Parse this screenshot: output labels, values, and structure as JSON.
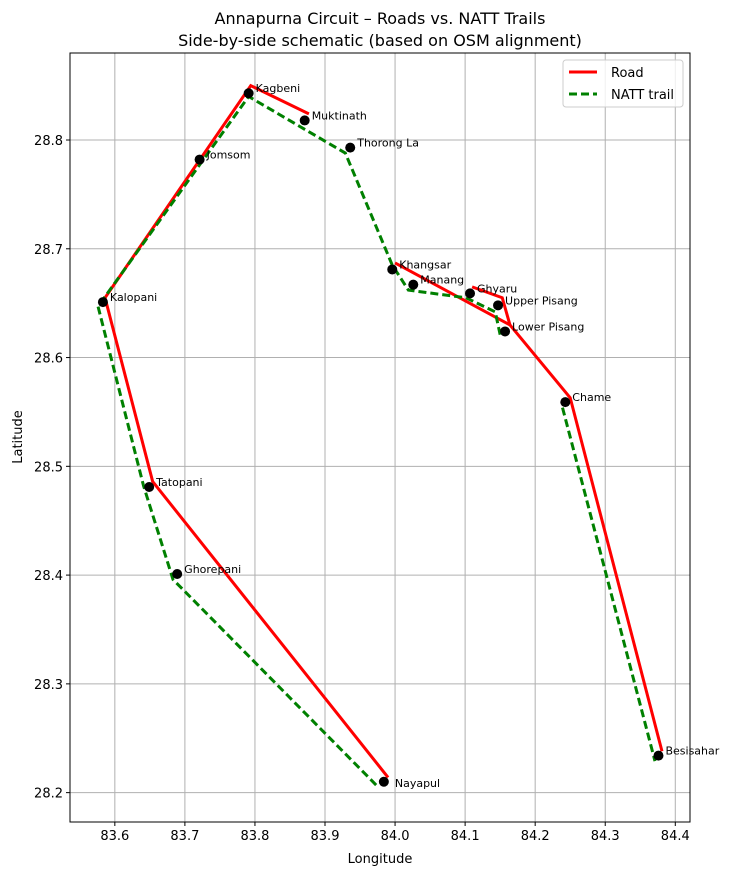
{
  "chart_data": {
    "type": "line",
    "title": "Annapurna Circuit – Roads vs. NATT Trails",
    "subtitle": "Side-by-side schematic (based on OSM alignment)",
    "xlabel": "Longitude",
    "ylabel": "Latitude",
    "xlim": [
      83.536,
      84.421
    ],
    "ylim": [
      28.173,
      28.88
    ],
    "xticks": [
      83.6,
      83.7,
      83.8,
      83.9,
      84.0,
      84.1,
      84.2,
      84.3,
      84.4
    ],
    "xtick_labels": [
      "83.6",
      "83.7",
      "83.8",
      "83.9",
      "84.0",
      "84.1",
      "84.2",
      "84.3",
      "84.4"
    ],
    "yticks": [
      28.2,
      28.3,
      28.4,
      28.5,
      28.6,
      28.7,
      28.8
    ],
    "ytick_labels": [
      "28.2",
      "28.3",
      "28.4",
      "28.5",
      "28.6",
      "28.7",
      "28.8"
    ],
    "grid": true,
    "legend_position": "top-right",
    "series": [
      {
        "name": "Road",
        "color": "#ff0000",
        "style": "solid",
        "segments": [
          [
            [
              83.99,
              28.214
            ],
            [
              83.654,
              28.486
            ],
            [
              83.586,
              28.655
            ],
            [
              83.794,
              28.85
            ],
            [
              83.877,
              28.824
            ]
          ],
          [
            [
              84.0,
              28.687
            ],
            [
              84.164,
              28.63
            ],
            [
              84.25,
              28.563
            ],
            [
              84.381,
              28.238
            ]
          ],
          [
            [
              84.11,
              28.665
            ],
            [
              84.153,
              28.655
            ],
            [
              84.164,
              28.63
            ]
          ]
        ]
      },
      {
        "name": "NATT trail",
        "color": "#008000",
        "style": "dashed",
        "segments": [
          [
            [
              83.973,
              28.207
            ],
            [
              83.683,
              28.396
            ],
            [
              83.641,
              28.482
            ],
            [
              83.576,
              28.647
            ],
            [
              83.791,
              28.84
            ],
            [
              83.929,
              28.788
            ],
            [
              83.996,
              28.685
            ],
            [
              84.019,
              28.662
            ],
            [
              84.101,
              28.655
            ],
            [
              84.143,
              28.642
            ],
            [
              84.15,
              28.621
            ]
          ],
          [
            [
              84.239,
              28.554
            ],
            [
              84.371,
              28.229
            ]
          ]
        ]
      }
    ],
    "places": [
      {
        "name": "Kagbeni",
        "lon": 83.791,
        "lat": 28.843
      },
      {
        "name": "Muktinath",
        "lon": 83.871,
        "lat": 28.818
      },
      {
        "name": "Thorong La",
        "lon": 83.936,
        "lat": 28.793
      },
      {
        "name": "Jomsom",
        "lon": 83.721,
        "lat": 28.782
      },
      {
        "name": "Kalopani",
        "lon": 83.583,
        "lat": 28.651
      },
      {
        "name": "Khangsar",
        "lon": 83.996,
        "lat": 28.681
      },
      {
        "name": "Manang",
        "lon": 84.026,
        "lat": 28.667
      },
      {
        "name": "Ghyaru",
        "lon": 84.107,
        "lat": 28.659
      },
      {
        "name": "Upper Pisang",
        "lon": 84.147,
        "lat": 28.648
      },
      {
        "name": "Lower Pisang",
        "lon": 84.157,
        "lat": 28.624
      },
      {
        "name": "Chame",
        "lon": 84.243,
        "lat": 28.559
      },
      {
        "name": "Tatopani",
        "lon": 83.649,
        "lat": 28.481
      },
      {
        "name": "Ghorepani",
        "lon": 83.689,
        "lat": 28.401
      },
      {
        "name": "Nayapul",
        "lon": 83.984,
        "lat": 28.21
      },
      {
        "name": "Besisahar",
        "lon": 84.376,
        "lat": 28.234
      }
    ]
  }
}
